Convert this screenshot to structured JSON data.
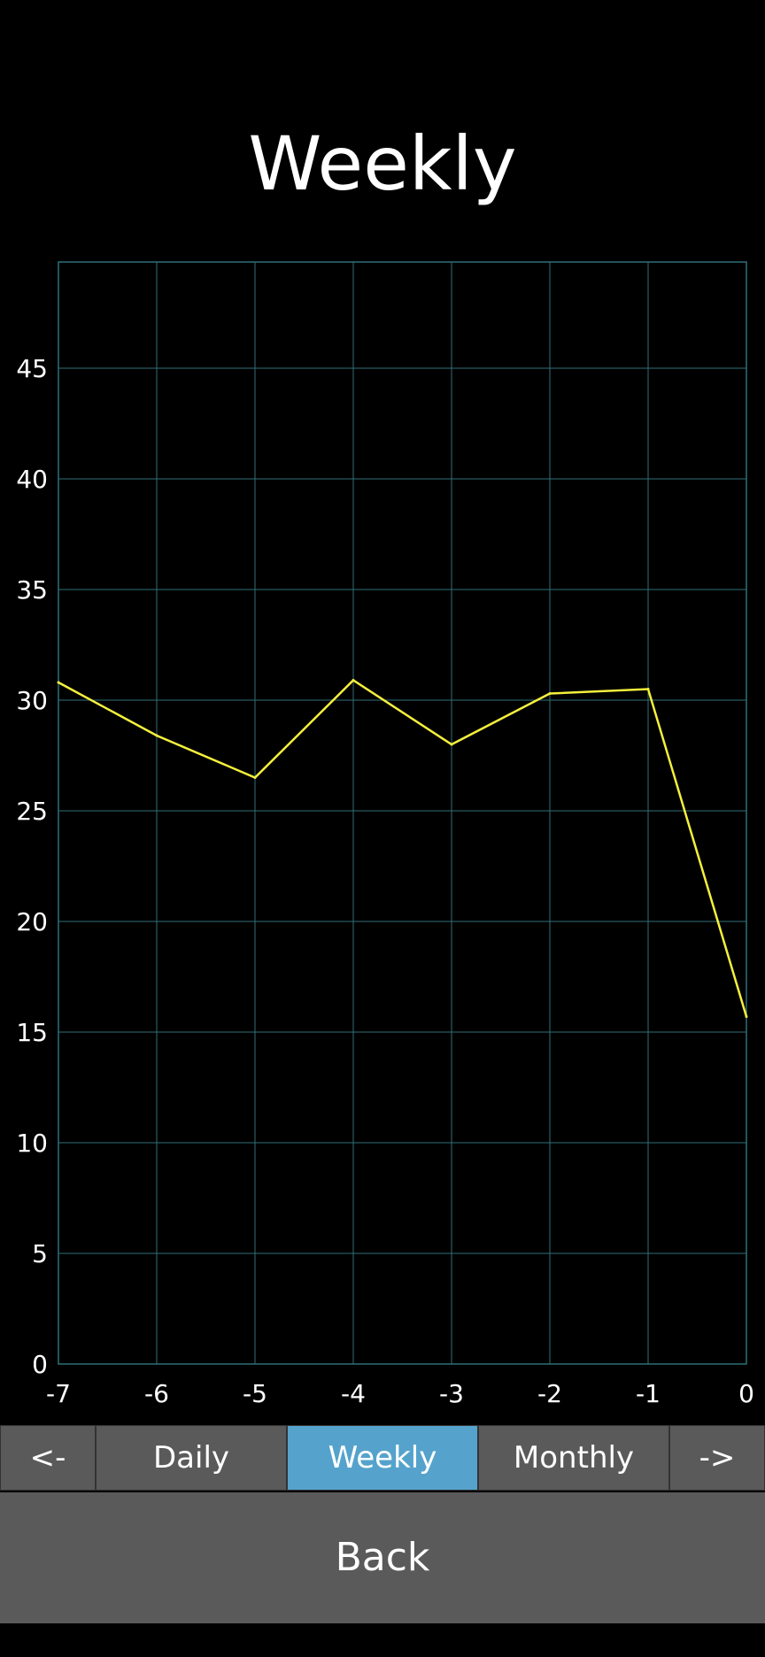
{
  "title": "Weekly",
  "colors": {
    "background": "#000000",
    "grid": "#2f6f78",
    "line": "#f5f03c",
    "button": "#5a5a5a",
    "button_active": "#55a3cc",
    "text": "#ffffff"
  },
  "chart_data": {
    "type": "line",
    "x": [
      -7,
      -6,
      -5,
      -4,
      -3,
      -2,
      -1,
      0
    ],
    "series": [
      {
        "values": [
          30.8,
          28.4,
          26.5,
          30.9,
          28.0,
          30.3,
          30.5,
          15.7
        ]
      }
    ],
    "xlim": [
      -7,
      0
    ],
    "ylim": [
      0,
      49.8
    ],
    "xticks": [
      -7,
      -6,
      -5,
      -4,
      -3,
      -2,
      -1,
      0
    ],
    "xtick_labels": [
      "-7",
      "-6",
      "-5",
      "-4",
      "-3",
      "-2",
      "-1",
      "0"
    ],
    "yticks": [
      0,
      5,
      10,
      15,
      20,
      25,
      30,
      35,
      40,
      45
    ],
    "ytick_labels": [
      "0",
      "5",
      "10",
      "15",
      "20",
      "25",
      "30",
      "35",
      "40",
      "45"
    ],
    "grid": true,
    "title": "",
    "xlabel": "",
    "ylabel": ""
  },
  "tabs": {
    "prev_label": "<-",
    "daily_label": "Daily",
    "weekly_label": "Weekly",
    "monthly_label": "Monthly",
    "next_label": "->",
    "active": "Weekly"
  },
  "back_label": "Back"
}
